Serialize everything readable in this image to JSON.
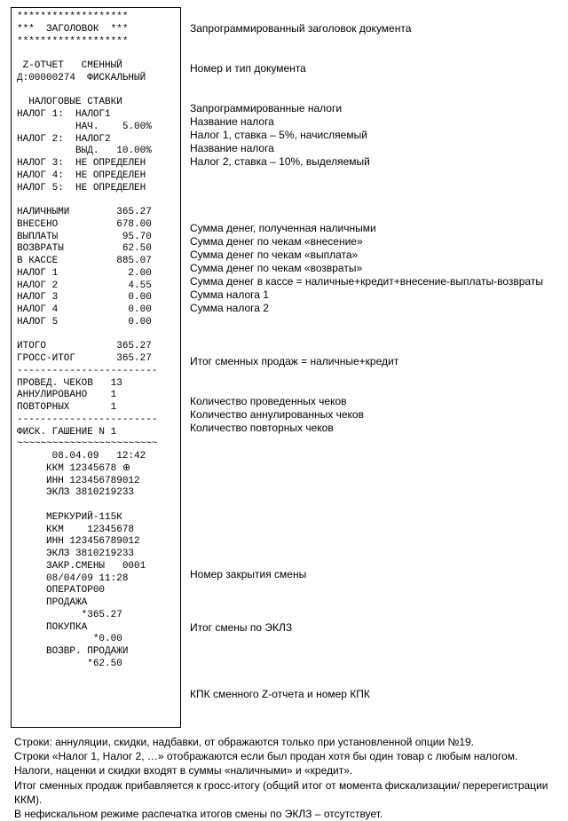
{
  "receipt": {
    "lines": [
      "*******************",
      "***  ЗАГОЛОВОК  ***",
      "*******************",
      "",
      " Z-ОТЧЕТ   СМЕННЫЙ",
      "Д:00000274  ФИСКАЛЬНЫЙ",
      "",
      "  НАЛОГОВЫЕ СТАВКИ",
      "НАЛОГ 1:  НАЛОГ1",
      "          НАЧ.    5.00%",
      "НАЛОГ 2:  НАЛОГ2",
      "          ВЫД.   10.00%",
      "НАЛОГ 3:  НЕ ОПРЕДЕЛЕН",
      "НАЛОГ 4:  НЕ ОПРЕДЕЛЕН",
      "НАЛОГ 5:  НЕ ОПРЕДЕЛЕН",
      "",
      "НАЛИЧНЫМИ        365.27",
      "ВНЕСЕНО          678.00",
      "ВЫПЛАТЫ           95.70",
      "ВОЗВРАТЫ          62.50",
      "В КАССЕ          885.07",
      "НАЛОГ 1            2.00",
      "НАЛОГ 2            4.55",
      "НАЛОГ 3            0.00",
      "НАЛОГ 4            0.00",
      "НАЛОГ 5            0.00",
      "",
      "ИТОГО            365.27",
      "ГРОСС-ИТОГ       365.27",
      "------------------------",
      "ПРОВЕД. ЧЕКОВ   13",
      "АННУЛИРОВАНО    1",
      "ПОВТОРНЫХ       1",
      "------------------------",
      "ФИСК. ГАШЕНИЕ N 1",
      "~~~~~~~~~~~~~~~~~~~~~~~~",
      "      08.04.09   12:42",
      "     ККМ 12345678 ⊕",
      "     ИНН 123456789012",
      "     ЭКЛЗ 3810219233",
      "",
      "     МЕРКУРИЙ-115К",
      "     ККМ    12345678",
      "     ИНН 123456789012",
      "     ЭКЛЗ 3810219233",
      "     ЗАКР.СМЕНЫ   0001",
      "     08/04/09 11:28",
      "     ОПЕРАТОР00",
      "     ПРОДАЖА",
      "           *365.27",
      "     ПОКУПКА",
      "             *0.00",
      "     ВОЗВР. ПРОДАЖИ",
      "            *62.50"
    ]
  },
  "annotations": {
    "lines": [
      "",
      "Запрограммированный заголовок документа",
      "",
      "",
      "Номер  и тип документа",
      "",
      "",
      "Запрограммированные налоги",
      "Название налога",
      "Налог 1, ставка – 5%, начисляемый",
      "Название налога",
      "Налог 2, ставка – 10%, выделяемый",
      "",
      "",
      "",
      "",
      "Сумма денег, полученная наличными",
      "Сумма денег по чекам «внесение»",
      "Сумма денег по чекам «выплата»",
      "Сумма денег по чекам «возвраты»",
      "Сумма денег в кассе = наличные+кредит+внесение-выплаты-возвраты",
      "Сумма налога 1",
      "Сумма налога 2",
      "",
      "",
      "",
      "Итог сменных продаж = наличные+кредит",
      "",
      "",
      "Количество проведенных чеков",
      "Количество аннулированных чеков",
      "Количество повторных чеков",
      "",
      "",
      "",
      "",
      "",
      "",
      "",
      "",
      "",
      "",
      "Номер закрытия смены",
      "",
      "",
      "",
      "Итог смены по ЭКЛЗ",
      "",
      "",
      "",
      "",
      "КПК сменного Z-отчета и номер КПК",
      "",
      ""
    ]
  },
  "footnotes": {
    "lines": [
      "Строки: аннуляции, скидки, надбавки, от ображаются только при установленной опции №19.",
      "Строки «Налог 1, Налог 2, …» отображаются если был продан хотя бы один товар с любым налогом.",
      "Налоги, наценки и скидки  входят в суммы  «наличными» и «кредит».",
      "Итог сменных продаж прибавляется к гросс-итогу  (общий итог от момента  фискализации/  перерегистрации ККМ).",
      "В нефискальном режиме распечатка итогов смены по ЭКЛЗ – отсутствует."
    ]
  }
}
